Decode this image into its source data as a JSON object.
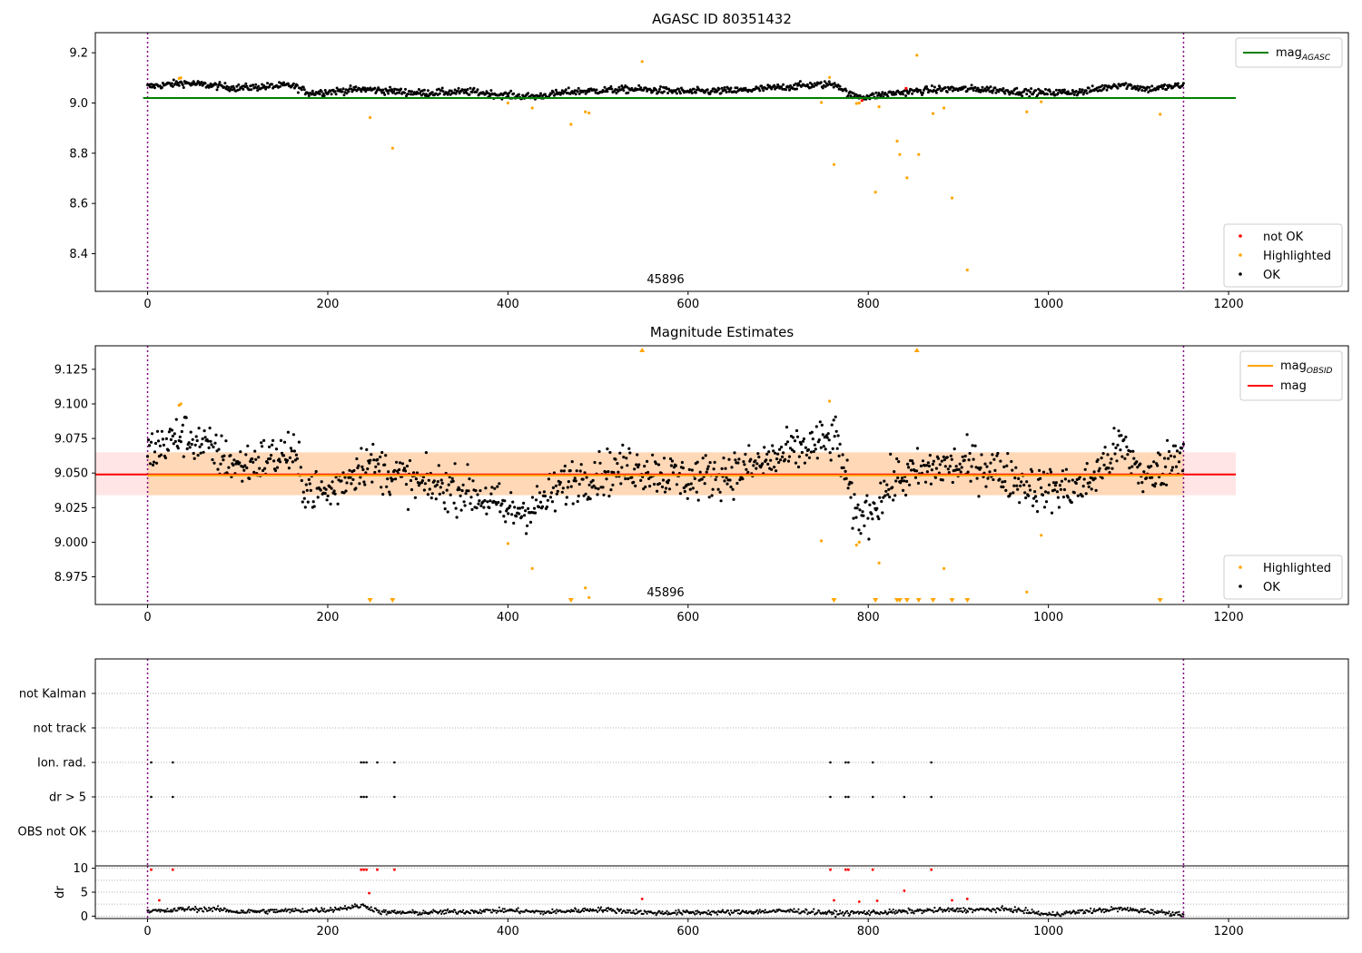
{
  "chart_data": [
    {
      "type": "scatter",
      "title": "AGASC ID 80351432",
      "xlim": [
        -58,
        1333
      ],
      "ylim": [
        8.25,
        9.28
      ],
      "xticks": [
        0,
        200,
        400,
        600,
        800,
        1000,
        1200
      ],
      "yticks": [
        8.4,
        8.6,
        8.8,
        9.0,
        9.2
      ],
      "ytick_labels": [
        "8.4",
        "8.6",
        "8.8",
        "9.0",
        "9.2"
      ],
      "obsid_label": "45896",
      "obsid_label_x": 575,
      "vlines": [
        0,
        1150
      ],
      "mag_agasc": {
        "value": 9.02,
        "x": [
          -5,
          1208
        ]
      },
      "legend_lines": [
        {
          "label": "mag",
          "sub": "AGASC",
          "color": "#008000"
        }
      ],
      "legend_points": [
        {
          "label": "not OK",
          "color": "#ff0000"
        },
        {
          "label": "Highlighted",
          "color": "#ffa500"
        },
        {
          "label": "OK",
          "color": "#000000"
        }
      ],
      "series": [
        {
          "name": "OK",
          "color": "#000000",
          "trend": [
            [
              0,
              9.065
            ],
            [
              40,
              9.08
            ],
            [
              100,
              9.06
            ],
            [
              160,
              9.07
            ],
            [
              180,
              9.04
            ],
            [
              240,
              9.055
            ],
            [
              300,
              9.04
            ],
            [
              360,
              9.045
            ],
            [
              400,
              9.03
            ],
            [
              430,
              9.025
            ],
            [
              470,
              9.045
            ],
            [
              540,
              9.055
            ],
            [
              600,
              9.045
            ],
            [
              660,
              9.05
            ],
            [
              730,
              9.07
            ],
            [
              765,
              9.075
            ],
            [
              780,
              9.03
            ],
            [
              800,
              9.025
            ],
            [
              830,
              9.04
            ],
            [
              880,
              9.055
            ],
            [
              930,
              9.055
            ],
            [
              990,
              9.04
            ],
            [
              1040,
              9.045
            ],
            [
              1080,
              9.075
            ],
            [
              1110,
              9.055
            ],
            [
              1150,
              9.07
            ]
          ],
          "jitter": 0.014,
          "n": 1150
        },
        {
          "name": "Highlighted",
          "color": "#ffa500",
          "points": [
            [
              35,
              9.098
            ],
            [
              37,
              9.1
            ],
            [
              247,
              8.942
            ],
            [
              272,
              8.82
            ],
            [
              400,
              9.0
            ],
            [
              427,
              8.98
            ],
            [
              470,
              8.915
            ],
            [
              486,
              8.965
            ],
            [
              490,
              8.96
            ],
            [
              549,
              9.165
            ],
            [
              748,
              9.002
            ],
            [
              757,
              9.102
            ],
            [
              762,
              8.755
            ],
            [
              787,
              8.998
            ],
            [
              790,
              9.0
            ],
            [
              808,
              8.645
            ],
            [
              812,
              8.985
            ],
            [
              832,
              8.848
            ],
            [
              835,
              8.795
            ],
            [
              843,
              8.702
            ],
            [
              854,
              9.19
            ],
            [
              856,
              8.795
            ],
            [
              872,
              8.958
            ],
            [
              884,
              8.98
            ],
            [
              893,
              8.622
            ],
            [
              910,
              8.335
            ],
            [
              976,
              8.965
            ],
            [
              992,
              9.005
            ],
            [
              1124,
              8.955
            ]
          ]
        },
        {
          "name": "not OK",
          "color": "#ff0000",
          "points": [
            [
              793,
              9.01
            ],
            [
              842,
              9.058
            ]
          ]
        }
      ]
    },
    {
      "type": "scatter",
      "title": "Magnitude Estimates",
      "xlim": [
        -58,
        1333
      ],
      "ylim": [
        8.955,
        9.142
      ],
      "xticks": [
        0,
        200,
        400,
        600,
        800,
        1000,
        1200
      ],
      "yticks": [
        8.975,
        9.0,
        9.025,
        9.05,
        9.075,
        9.1,
        9.125
      ],
      "ytick_labels": [
        "8.975",
        "9.000",
        "9.025",
        "9.050",
        "9.075",
        "9.100",
        "9.125"
      ],
      "obsid_label": "45896",
      "obsid_label_x": 575,
      "vlines": [
        0,
        1150
      ],
      "mag": {
        "value": 9.049,
        "band": [
          9.034,
          9.065
        ],
        "x": [
          -58,
          1208
        ]
      },
      "mag_obsid": {
        "value": 9.049,
        "band": [
          9.034,
          9.065
        ],
        "x": [
          0,
          1150
        ]
      },
      "legend_lines": [
        {
          "label": "mag",
          "sub": "OBSID",
          "color": "#ffa500"
        },
        {
          "label": "mag",
          "sub": "",
          "color": "#ff0000"
        }
      ],
      "legend_points": [
        {
          "label": "Highlighted",
          "color": "#ffa500"
        },
        {
          "label": "OK",
          "color": "#000000"
        }
      ],
      "series": [
        {
          "name": "OK",
          "color": "#000000",
          "trend": [
            [
              0,
              9.065
            ],
            [
              40,
              9.078
            ],
            [
              100,
              9.055
            ],
            [
              160,
              9.065
            ],
            [
              175,
              9.04
            ],
            [
              200,
              9.035
            ],
            [
              240,
              9.058
            ],
            [
              300,
              9.042
            ],
            [
              350,
              9.038
            ],
            [
              380,
              9.03
            ],
            [
              400,
              9.022
            ],
            [
              430,
              9.025
            ],
            [
              470,
              9.045
            ],
            [
              540,
              9.055
            ],
            [
              600,
              9.045
            ],
            [
              660,
              9.052
            ],
            [
              730,
              9.068
            ],
            [
              765,
              9.075
            ],
            [
              785,
              9.018
            ],
            [
              800,
              9.022
            ],
            [
              830,
              9.045
            ],
            [
              880,
              9.055
            ],
            [
              930,
              9.055
            ],
            [
              990,
              9.038
            ],
            [
              1040,
              9.04
            ],
            [
              1080,
              9.07
            ],
            [
              1110,
              9.045
            ],
            [
              1150,
              9.068
            ]
          ],
          "jitter": 0.016,
          "n": 1150
        },
        {
          "name": "Highlighted",
          "color": "#ffa500",
          "points": [
            [
              35,
              9.099
            ],
            [
              37,
              9.1
            ],
            [
              400,
              8.999
            ],
            [
              427,
              8.981
            ],
            [
              486,
              8.967
            ],
            [
              490,
              8.96
            ],
            [
              748,
              9.001
            ],
            [
              757,
              9.102
            ],
            [
              787,
              8.998
            ],
            [
              790,
              9.0
            ],
            [
              812,
              8.985
            ],
            [
              884,
              8.981
            ],
            [
              976,
              8.964
            ],
            [
              992,
              9.005
            ]
          ]
        },
        {
          "name": "Highlighted (off-scale)",
          "color": "#ffa500",
          "down": [
            247,
            272,
            470,
            762,
            808,
            832,
            835,
            843,
            856,
            872,
            893,
            910,
            1124
          ],
          "up": [
            549,
            854
          ]
        }
      ]
    },
    {
      "type": "scatter",
      "title": "",
      "xlim": [
        -58,
        1333
      ],
      "xticks": [
        0,
        200,
        400,
        600,
        800,
        1000,
        1200
      ],
      "vlines": [
        0,
        1150
      ],
      "flag_categories": [
        "not Kalman",
        "not track",
        "Ion. rad.",
        "dr > 5",
        "OBS not OK"
      ],
      "flags": {
        "not Kalman": [],
        "not track": [],
        "Ion. rad.": [
          4,
          28,
          237,
          240,
          243,
          255,
          274,
          758,
          775,
          778,
          805,
          870
        ],
        "dr > 5": [
          4,
          28,
          237,
          240,
          243,
          274,
          758,
          775,
          778,
          805,
          840,
          870
        ],
        "OBS not OK": []
      }
    },
    {
      "type": "scatter",
      "title": "",
      "ylabel": "dr",
      "xlim": [
        -58,
        1333
      ],
      "ylim": [
        -0.5,
        10.5
      ],
      "xticks": [
        0,
        200,
        400,
        600,
        800,
        1000,
        1200
      ],
      "xtick_labels": [
        "0",
        "200",
        "400",
        "600",
        "800",
        "1000",
        "1200"
      ],
      "yticks": [
        0,
        5,
        10
      ],
      "ytick_labels": [
        "0",
        "5",
        "10"
      ],
      "vlines": [
        0,
        1150
      ],
      "series": [
        {
          "name": "dr",
          "color": "#000000",
          "trend": [
            [
              0,
              1.2
            ],
            [
              20,
              1.0
            ],
            [
              40,
              1.5
            ],
            [
              80,
              1.4
            ],
            [
              100,
              0.9
            ],
            [
              200,
              1.3
            ],
            [
              240,
              2.2
            ],
            [
              260,
              0.8
            ],
            [
              300,
              0.7
            ],
            [
              400,
              1.2
            ],
            [
              440,
              0.8
            ],
            [
              500,
              1.4
            ],
            [
              560,
              0.7
            ],
            [
              640,
              0.8
            ],
            [
              720,
              1.1
            ],
            [
              760,
              0.6
            ],
            [
              820,
              0.8
            ],
            [
              870,
              1.2
            ],
            [
              960,
              1.4
            ],
            [
              1000,
              0.3
            ],
            [
              1040,
              1.0
            ],
            [
              1080,
              1.5
            ],
            [
              1150,
              0.4
            ]
          ],
          "jitter": 0.5,
          "n": 1150
        },
        {
          "name": "dr > 5",
          "color": "#ff0000",
          "points": [
            [
              4,
              9.7
            ],
            [
              28,
              9.7
            ],
            [
              237,
              9.7
            ],
            [
              240,
              9.7
            ],
            [
              243,
              9.7
            ],
            [
              255,
              9.7
            ],
            [
              274,
              9.7
            ],
            [
              758,
              9.7
            ],
            [
              775,
              9.7
            ],
            [
              778,
              9.7
            ],
            [
              805,
              9.7
            ],
            [
              870,
              9.7
            ],
            [
              13,
              3.3
            ],
            [
              246,
              4.8
            ],
            [
              549,
              3.6
            ],
            [
              762,
              3.3
            ],
            [
              790,
              3.0
            ],
            [
              810,
              3.2
            ],
            [
              840,
              5.3
            ],
            [
              893,
              3.3
            ],
            [
              910,
              3.6
            ]
          ]
        }
      ]
    }
  ]
}
